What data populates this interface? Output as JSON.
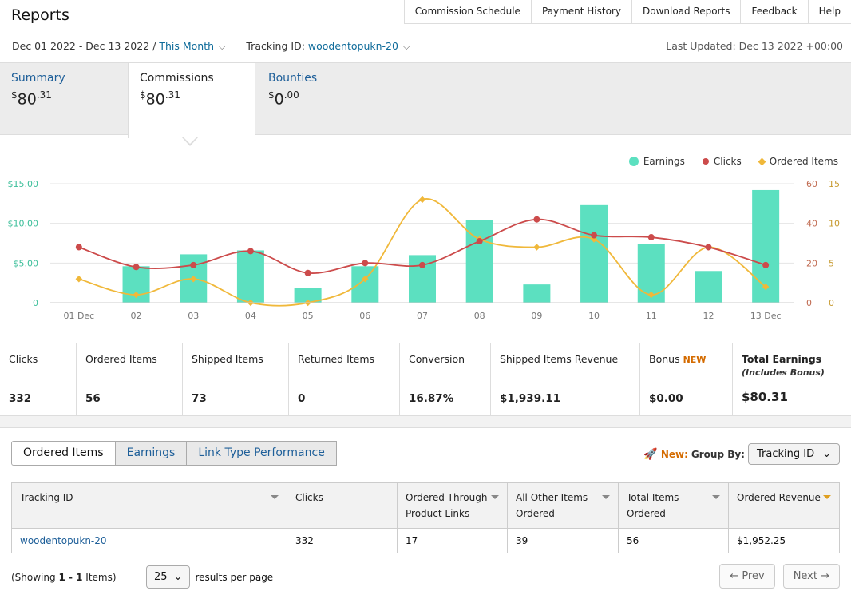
{
  "header": {
    "title": "Reports",
    "nav": [
      "Commission Schedule",
      "Payment History",
      "Download Reports",
      "Feedback",
      "Help"
    ],
    "date_range": "Dec 01 2022 - Dec 13 2022 /",
    "period": "This Month",
    "tracking_label": "Tracking ID:",
    "tracking_id": "woodentopukn-20",
    "last_updated": "Last Updated: Dec 13 2022 +00:00"
  },
  "summary_tabs": [
    {
      "label": "Summary",
      "dollars": "80",
      "cents": ".31"
    },
    {
      "label": "Commissions",
      "dollars": "80",
      "cents": ".31"
    },
    {
      "label": "Bounties",
      "dollars": "0",
      "cents": ".00"
    }
  ],
  "legend": [
    "Earnings",
    "Clicks",
    "Ordered Items"
  ],
  "colors": {
    "earnings": "#5ce0c0",
    "clicks": "#cc4b4b",
    "ordered": "#f0b83a",
    "link": "#1e5f99"
  },
  "chart_data": {
    "type": "bar",
    "categories": [
      "01 Dec",
      "02",
      "03",
      "04",
      "05",
      "06",
      "07",
      "08",
      "09",
      "10",
      "11",
      "12",
      "13 Dec"
    ],
    "series": [
      {
        "name": "Earnings",
        "type": "bar",
        "axis": "left",
        "values": [
          0,
          4.6,
          6.1,
          6.6,
          1.9,
          4.6,
          6.0,
          10.4,
          2.3,
          12.3,
          7.4,
          4.0,
          14.2
        ]
      },
      {
        "name": "Clicks",
        "type": "line",
        "axis": "right-outer",
        "values": [
          28,
          18,
          19,
          26,
          15,
          20,
          19,
          31,
          42,
          34,
          33,
          28,
          19
        ]
      },
      {
        "name": "Ordered Items",
        "type": "line",
        "axis": "right-inner",
        "values": [
          3,
          1,
          3,
          0,
          0,
          3,
          13,
          8,
          7,
          8,
          1,
          7,
          2
        ]
      }
    ],
    "y_left": {
      "ticks": [
        "$15.00",
        "$10.00",
        "$5.00",
        "0"
      ],
      "max": 15
    },
    "y_right_outer": {
      "ticks": [
        "60",
        "40",
        "20",
        "0"
      ],
      "max": 60
    },
    "y_right_inner": {
      "ticks": [
        "15",
        "10",
        "5",
        "0"
      ],
      "max": 15
    },
    "grid": true,
    "legend_position": "top-right"
  },
  "stats": [
    {
      "label": "Clicks",
      "value": "332"
    },
    {
      "label": "Ordered Items",
      "value": "56"
    },
    {
      "label": "Shipped Items",
      "value": "73"
    },
    {
      "label": "Returned Items",
      "value": "0"
    },
    {
      "label": "Conversion",
      "value": "16.87%"
    },
    {
      "label": "Shipped Items Revenue",
      "value": "$1,939.11"
    },
    {
      "label": "Bonus",
      "badge": "NEW",
      "value": "$0.00"
    },
    {
      "label": "Total Earnings",
      "sub": "(Includes Bonus)",
      "value": "$80.31"
    }
  ],
  "report_tabs": [
    "Ordered Items",
    "Earnings",
    "Link Type Performance"
  ],
  "group_by": {
    "new": "New:",
    "label": "Group By:",
    "value": "Tracking ID"
  },
  "table": {
    "headers": [
      "Tracking ID",
      "Clicks",
      "Ordered Through Product Links",
      "All Other Items Ordered",
      "Total Items Ordered",
      "Ordered Revenue"
    ],
    "rows": [
      [
        "woodentopukn-20",
        "332",
        "17",
        "39",
        "56",
        "$1,952.25"
      ]
    ]
  },
  "footer": {
    "showing_pre": "(Showing ",
    "showing_range": "1 - 1",
    "showing_post": " Items)",
    "per_page": "25",
    "per_page_label": "results per page",
    "prev": "← Prev",
    "next": "Next →"
  }
}
